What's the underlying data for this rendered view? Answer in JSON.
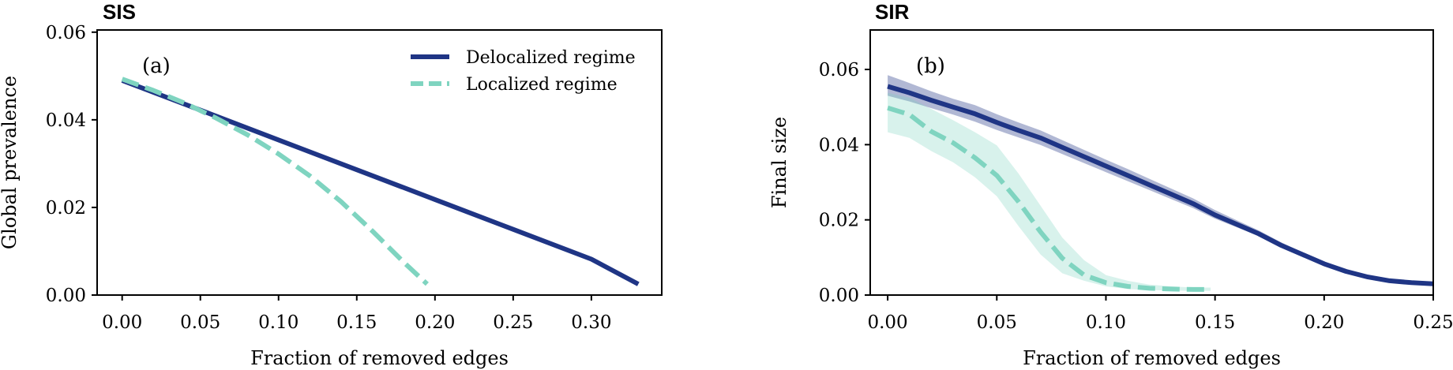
{
  "chart_data": [
    {
      "type": "line",
      "title": "SIS",
      "panel_label": "(a)",
      "xlabel": "Fraction of removed edges",
      "ylabel": "Global prevalence",
      "xlim": [
        -0.016,
        0.345
      ],
      "ylim": [
        0,
        0.0605
      ],
      "xticks": [
        0.0,
        0.05,
        0.1,
        0.15,
        0.2,
        0.25,
        0.3
      ],
      "xtick_labels": [
        "0.00",
        "0.05",
        "0.10",
        "0.15",
        "0.20",
        "0.25",
        "0.30"
      ],
      "yticks": [
        0.0,
        0.02,
        0.04,
        0.06
      ],
      "ytick_labels": [
        "0.00",
        "0.02",
        "0.04",
        "0.06"
      ],
      "legend_position": "top-right",
      "series": [
        {
          "name": "Delocalized regime",
          "color": "#1f3585",
          "style": "solid",
          "x": [
            0.0,
            0.05,
            0.1,
            0.15,
            0.2,
            0.25,
            0.3,
            0.33
          ],
          "y": [
            0.049,
            0.0422,
            0.0354,
            0.0286,
            0.0218,
            0.015,
            0.0082,
            0.0025
          ]
        },
        {
          "name": "Localized regime",
          "color": "#7fd4c0",
          "style": "dashed",
          "x": [
            0.0,
            0.02,
            0.04,
            0.06,
            0.08,
            0.1,
            0.12,
            0.14,
            0.16,
            0.18,
            0.195
          ],
          "y": [
            0.0493,
            0.0467,
            0.0438,
            0.0404,
            0.0366,
            0.0322,
            0.0272,
            0.0213,
            0.0146,
            0.0075,
            0.0025
          ]
        }
      ]
    },
    {
      "type": "line",
      "title": "SIR",
      "panel_label": "(b)",
      "xlabel": "Fraction of removed edges",
      "ylabel": "Final size",
      "xlim": [
        -0.008,
        0.25
      ],
      "ylim": [
        0,
        0.0705
      ],
      "xticks": [
        0.0,
        0.05,
        0.1,
        0.15,
        0.2,
        0.25
      ],
      "xtick_labels": [
        "0.00",
        "0.05",
        "0.10",
        "0.15",
        "0.20",
        "0.25"
      ],
      "yticks": [
        0.0,
        0.02,
        0.04,
        0.06
      ],
      "ytick_labels": [
        "0.00",
        "0.02",
        "0.04",
        "0.06"
      ],
      "series": [
        {
          "name": "Delocalized regime",
          "color": "#1f3585",
          "style": "solid",
          "x": [
            0.0,
            0.01,
            0.02,
            0.03,
            0.04,
            0.05,
            0.06,
            0.07,
            0.08,
            0.09,
            0.1,
            0.11,
            0.12,
            0.13,
            0.14,
            0.15,
            0.16,
            0.17,
            0.18,
            0.19,
            0.2,
            0.21,
            0.22,
            0.23,
            0.24,
            0.25
          ],
          "y": [
            0.0555,
            0.0538,
            0.0518,
            0.05,
            0.0482,
            0.0459,
            0.0438,
            0.0418,
            0.0393,
            0.0368,
            0.0343,
            0.0318,
            0.0293,
            0.0268,
            0.0243,
            0.0213,
            0.0188,
            0.0163,
            0.0133,
            0.0108,
            0.0083,
            0.0063,
            0.0048,
            0.0038,
            0.0033,
            0.003
          ],
          "band_lower": [
            0.053,
            0.0515,
            0.0497,
            0.048,
            0.0461,
            0.0439,
            0.0419,
            0.0399,
            0.0375,
            0.0351,
            0.0327,
            0.0303,
            0.0279,
            0.0255,
            0.0231,
            0.0203,
            0.018,
            0.0157,
            0.0128,
            0.0104,
            0.0081,
            0.0061,
            0.0047,
            0.0037,
            0.0032,
            0.0029
          ],
          "band_upper": [
            0.0585,
            0.0564,
            0.0542,
            0.0522,
            0.0505,
            0.0481,
            0.0459,
            0.0438,
            0.0412,
            0.0386,
            0.036,
            0.0335,
            0.0309,
            0.0283,
            0.0257,
            0.0226,
            0.0199,
            0.0172,
            0.0141,
            0.0114,
            0.0088,
            0.0066,
            0.005,
            0.0039,
            0.0034,
            0.0031
          ]
        },
        {
          "name": "Localized regime",
          "color": "#7fd4c0",
          "style": "dashed",
          "x": [
            0.0,
            0.01,
            0.02,
            0.03,
            0.04,
            0.05,
            0.06,
            0.07,
            0.08,
            0.09,
            0.1,
            0.11,
            0.12,
            0.13,
            0.14,
            0.148
          ],
          "y": [
            0.0498,
            0.048,
            0.0435,
            0.0405,
            0.0365,
            0.0318,
            0.0248,
            0.0168,
            0.0098,
            0.0053,
            0.0033,
            0.0023,
            0.0018,
            0.0016,
            0.0015,
            0.0015
          ],
          "band_lower": [
            0.0433,
            0.0418,
            0.0383,
            0.0353,
            0.0313,
            0.0263,
            0.0183,
            0.0108,
            0.0058,
            0.0038,
            0.0023,
            0.0016,
            0.0013,
            0.0012,
            0.0011,
            0.0011
          ],
          "band_upper": [
            0.0538,
            0.0525,
            0.0495,
            0.0465,
            0.0433,
            0.0398,
            0.0323,
            0.0238,
            0.0153,
            0.0093,
            0.0053,
            0.0038,
            0.0028,
            0.0023,
            0.002,
            0.002
          ]
        }
      ]
    }
  ]
}
